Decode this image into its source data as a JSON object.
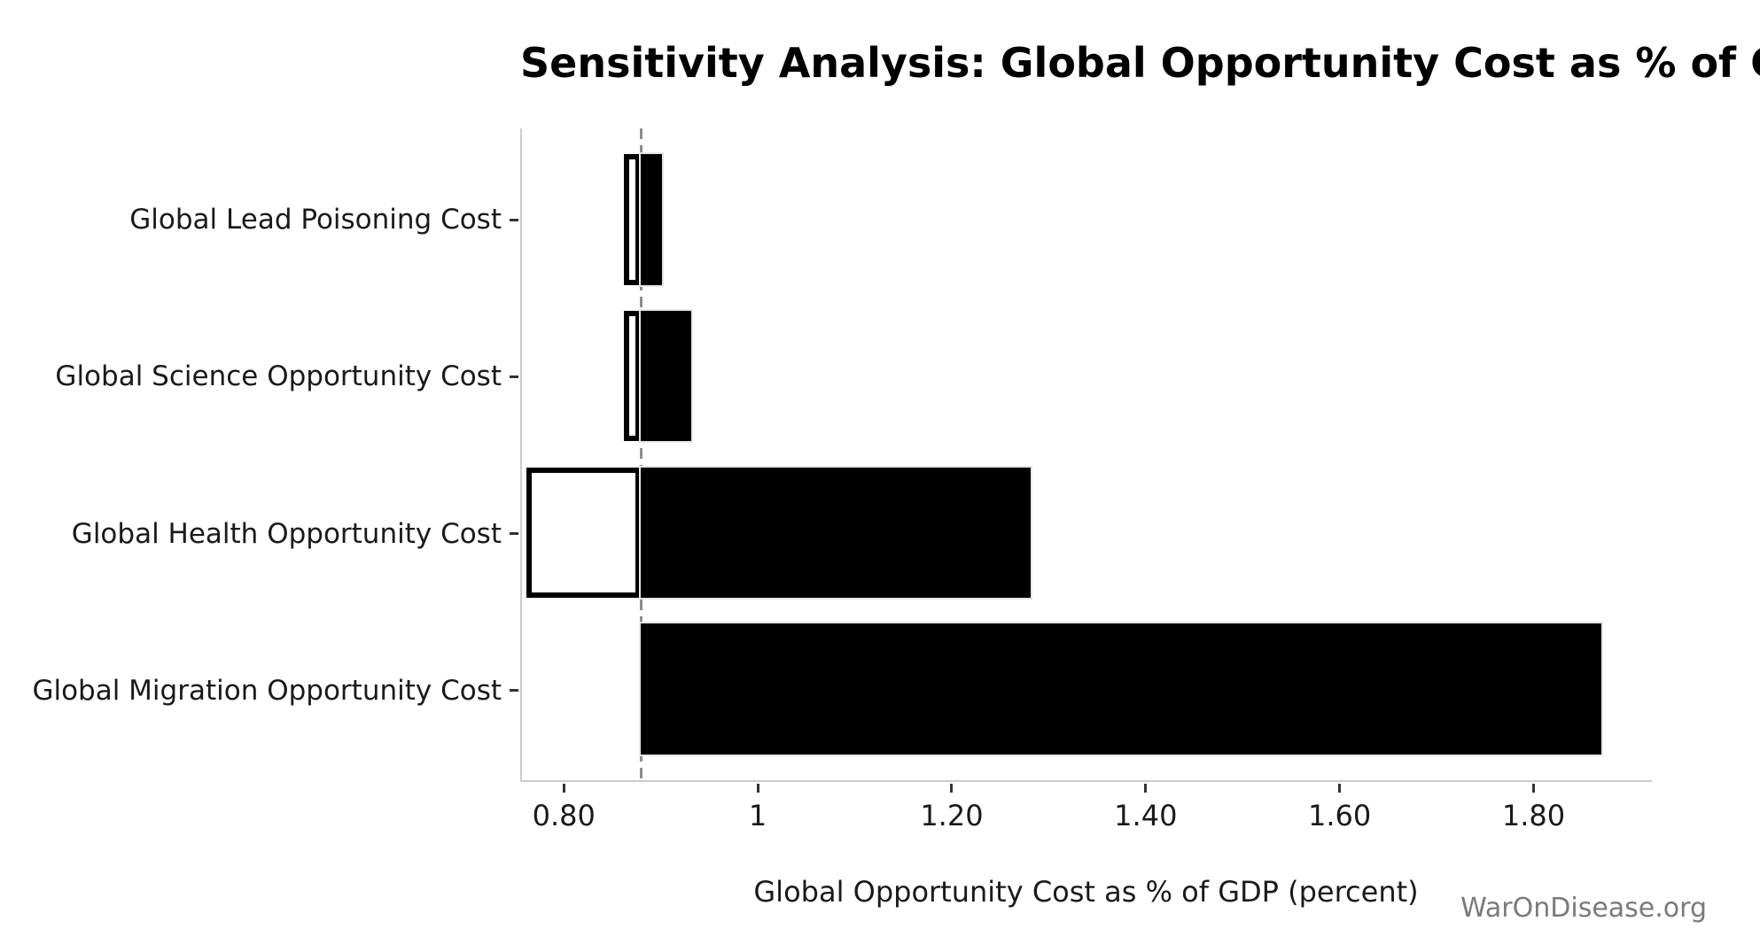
{
  "page": {
    "title": "Sensitivity Analysis: Global Opportunity Cost as % of GDP",
    "watermark": "WarOnDisease.org"
  },
  "chart_data": {
    "type": "bar",
    "orientation": "horizontal",
    "subtype": "tornado-sensitivity",
    "title": "Sensitivity Analysis: Global Opportunity Cost as % of GDP",
    "xlabel": "Global Opportunity Cost as % of GDP (percent)",
    "ylabel": "",
    "xlim": [
      0.755,
      1.922
    ],
    "baseline": 0.878,
    "grid": false,
    "legend": false,
    "categories": [
      "Global Lead Poisoning Cost",
      "Global Science Opportunity Cost",
      "Global Health Opportunity Cost",
      "Global Migration Opportunity Cost"
    ],
    "series": [
      {
        "name": "low",
        "values": [
          0.86,
          0.86,
          0.76,
          0.88
        ]
      },
      {
        "name": "high",
        "values": [
          0.9,
          0.93,
          1.28,
          1.87
        ]
      }
    ],
    "xticks": {
      "values": [
        0.8,
        1.0,
        1.2,
        1.4,
        1.6,
        1.8
      ],
      "labels": [
        "0.80",
        "1",
        "1.20",
        "1.40",
        "1.60",
        "1.80"
      ]
    },
    "colors": {
      "bar_high_fill": "#000000",
      "bar_low_fill": "#ffffff",
      "bar_low_edge": "#000000",
      "baseline_line": "#8c8c8c",
      "spine": "#cccccc",
      "tick": "#333333",
      "text": "#1a1a1a",
      "watermark": "#7a7a7a"
    }
  }
}
